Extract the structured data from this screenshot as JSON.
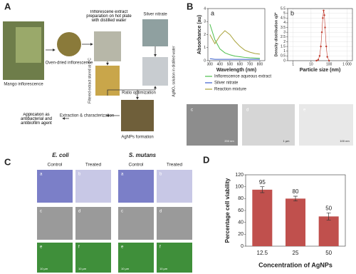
{
  "panel_labels": [
    "A",
    "B",
    "C",
    "D"
  ],
  "panel_a": {
    "mango": "Mango inflorescence",
    "dried": "Oven-dried inflorescence",
    "extract": "Inflorescene extract preparation on hot plate with distilled water",
    "filtered": "Filtered extract stored at 4°C",
    "silver": "Silver nitrate",
    "agno3": "AgNO₃ solution in distilled water",
    "ratio": "Ratio optimization",
    "agnps": "AgNPs formation",
    "extraction": "Extraction & characterization",
    "application": "Application as antibacterial and antibiofilm agent"
  },
  "panel_b_images": {
    "labels": [
      "c",
      "d",
      "e"
    ],
    "scale_bars": [
      "200 nm",
      "1 µm",
      "100 nm"
    ]
  },
  "panel_c": {
    "organisms": [
      "E. coli",
      "S. mutans"
    ],
    "columns": [
      "Control",
      "Treated"
    ],
    "sub_labels": [
      "a",
      "b",
      "c",
      "d",
      "e",
      "f"
    ],
    "scale_bar": "10 µm"
  },
  "chart_data": [
    {
      "type": "line",
      "annotation": "a",
      "xlabel": "Wavelength (nm)",
      "ylabel": "Absorbance (au)",
      "x": [
        300,
        350,
        400,
        450,
        500,
        550,
        600,
        650,
        700,
        750,
        800
      ],
      "xlim": [
        280,
        850
      ],
      "xticks": [
        300,
        400,
        500,
        600,
        700,
        800
      ],
      "ylim": [
        0,
        4
      ],
      "yticks": [
        0,
        1,
        2,
        3,
        4
      ],
      "series": [
        {
          "name": "Inflorescence aqueous extract",
          "color": "#4cbf4c",
          "values": [
            2.8,
            1.6,
            0.9,
            0.6,
            0.45,
            0.35,
            0.3,
            0.25,
            0.22,
            0.2,
            0.18
          ]
        },
        {
          "name": "Silver nitrate",
          "color": "#3a5fcd",
          "values": [
            0.15,
            0.1,
            0.1,
            0.1,
            0.1,
            0.1,
            0.1,
            0.1,
            0.1,
            0.1,
            0.1
          ]
        },
        {
          "name": "Reaction mixture",
          "color": "#a8a23a",
          "values": [
            2.0,
            1.3,
            1.9,
            2.3,
            2.0,
            1.5,
            1.1,
            0.8,
            0.65,
            0.55,
            0.5
          ]
        }
      ]
    },
    {
      "type": "scatter",
      "annotation": "b",
      "xlabel": "Particle size (nm)",
      "ylabel": "Density distribution q3*",
      "log_x": true,
      "grid": true,
      "color": "#c0392b",
      "x": [
        20,
        25,
        30,
        35,
        40,
        45,
        50,
        55,
        60,
        70,
        80,
        100
      ],
      "values": [
        0,
        0.1,
        0.5,
        1.5,
        3,
        4.5,
        5.3,
        4.8,
        3.5,
        1.5,
        0.4,
        0
      ],
      "xlim": [
        0.5,
        2000
      ],
      "xticks": [
        1,
        10,
        100,
        {
          "value": 1000,
          "label": "1 000"
        }
      ],
      "ylim": [
        0,
        5.5
      ],
      "yticks": [
        0,
        0.5,
        1,
        1.5,
        2,
        2.5,
        3,
        3.5,
        4,
        4.5,
        5,
        5.5
      ]
    },
    {
      "type": "bar",
      "xlabel": "Concentration of AgNPs",
      "ylabel": "Percentage cell viability",
      "categories": [
        "12.5",
        "25",
        "50"
      ],
      "values": [
        95,
        80,
        50
      ],
      "errors": [
        5,
        4,
        6
      ],
      "color": "#c0504d",
      "ylim": [
        0,
        120
      ],
      "yticks": [
        0,
        20,
        40,
        60,
        80,
        100,
        120
      ]
    }
  ]
}
